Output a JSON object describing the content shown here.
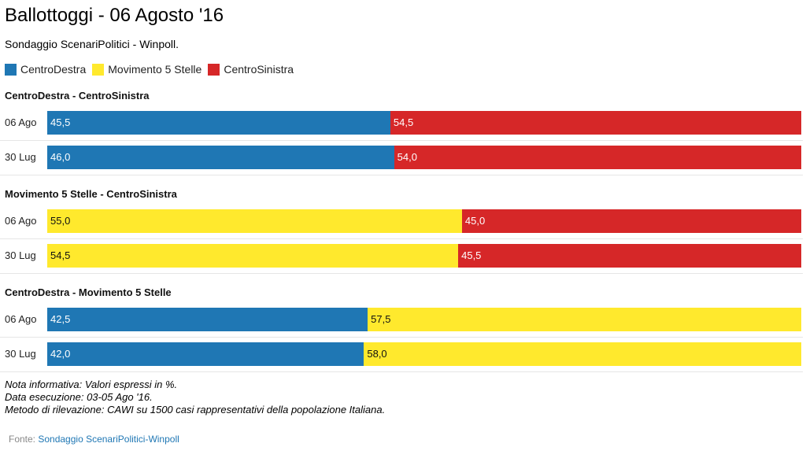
{
  "title": "Ballottoggi - 06 Agosto '16",
  "subtitle": "Sondaggio ScenariPolitici - Winpoll.",
  "colors": {
    "CentroDestra": "#1f77b4",
    "Movimento 5 Stelle": "#ffe92d",
    "CentroSinistra": "#d62728"
  },
  "chart_data": {
    "type": "bar",
    "orientation": "horizontal",
    "stacked": true,
    "xlim": [
      0,
      100
    ],
    "legend": {
      "position": "top-left",
      "entries": [
        "CentroDestra",
        "Movimento 5 Stelle",
        "CentroSinistra"
      ]
    },
    "groups": [
      {
        "title": "CentroDestra - CentroSinistra",
        "categories": [
          "06 Ago",
          "30 Lug"
        ],
        "series": [
          {
            "name": "CentroDestra",
            "values": [
              45.5,
              46.0
            ],
            "labels": [
              "45,5",
              "46,0"
            ]
          },
          {
            "name": "CentroSinistra",
            "values": [
              54.5,
              54.0
            ],
            "labels": [
              "54,5",
              "54,0"
            ]
          }
        ]
      },
      {
        "title": "Movimento 5 Stelle - CentroSinistra",
        "categories": [
          "06 Ago",
          "30 Lug"
        ],
        "series": [
          {
            "name": "Movimento 5 Stelle",
            "values": [
              55.0,
              54.5
            ],
            "labels": [
              "55,0",
              "54,5"
            ]
          },
          {
            "name": "CentroSinistra",
            "values": [
              45.0,
              45.5
            ],
            "labels": [
              "45,0",
              "45,5"
            ]
          }
        ]
      },
      {
        "title": "CentroDestra - Movimento 5 Stelle",
        "categories": [
          "06 Ago",
          "30 Lug"
        ],
        "series": [
          {
            "name": "CentroDestra",
            "values": [
              42.5,
              42.0
            ],
            "labels": [
              "42,5",
              "42,0"
            ]
          },
          {
            "name": "Movimento 5 Stelle",
            "values": [
              57.5,
              58.0
            ],
            "labels": [
              "57,5",
              "58,0"
            ]
          }
        ]
      }
    ]
  },
  "notes": [
    "Nota informativa: Valori espressi in %.",
    "Data esecuzione: 03-05 Ago '16.",
    "Metodo di rilevazione: CAWI su 1500 casi rappresentativi della popolazione Italiana."
  ],
  "source": {
    "prefix": "Fonte: ",
    "link_text": "Sondaggio ScenariPolitici-Winpoll"
  }
}
